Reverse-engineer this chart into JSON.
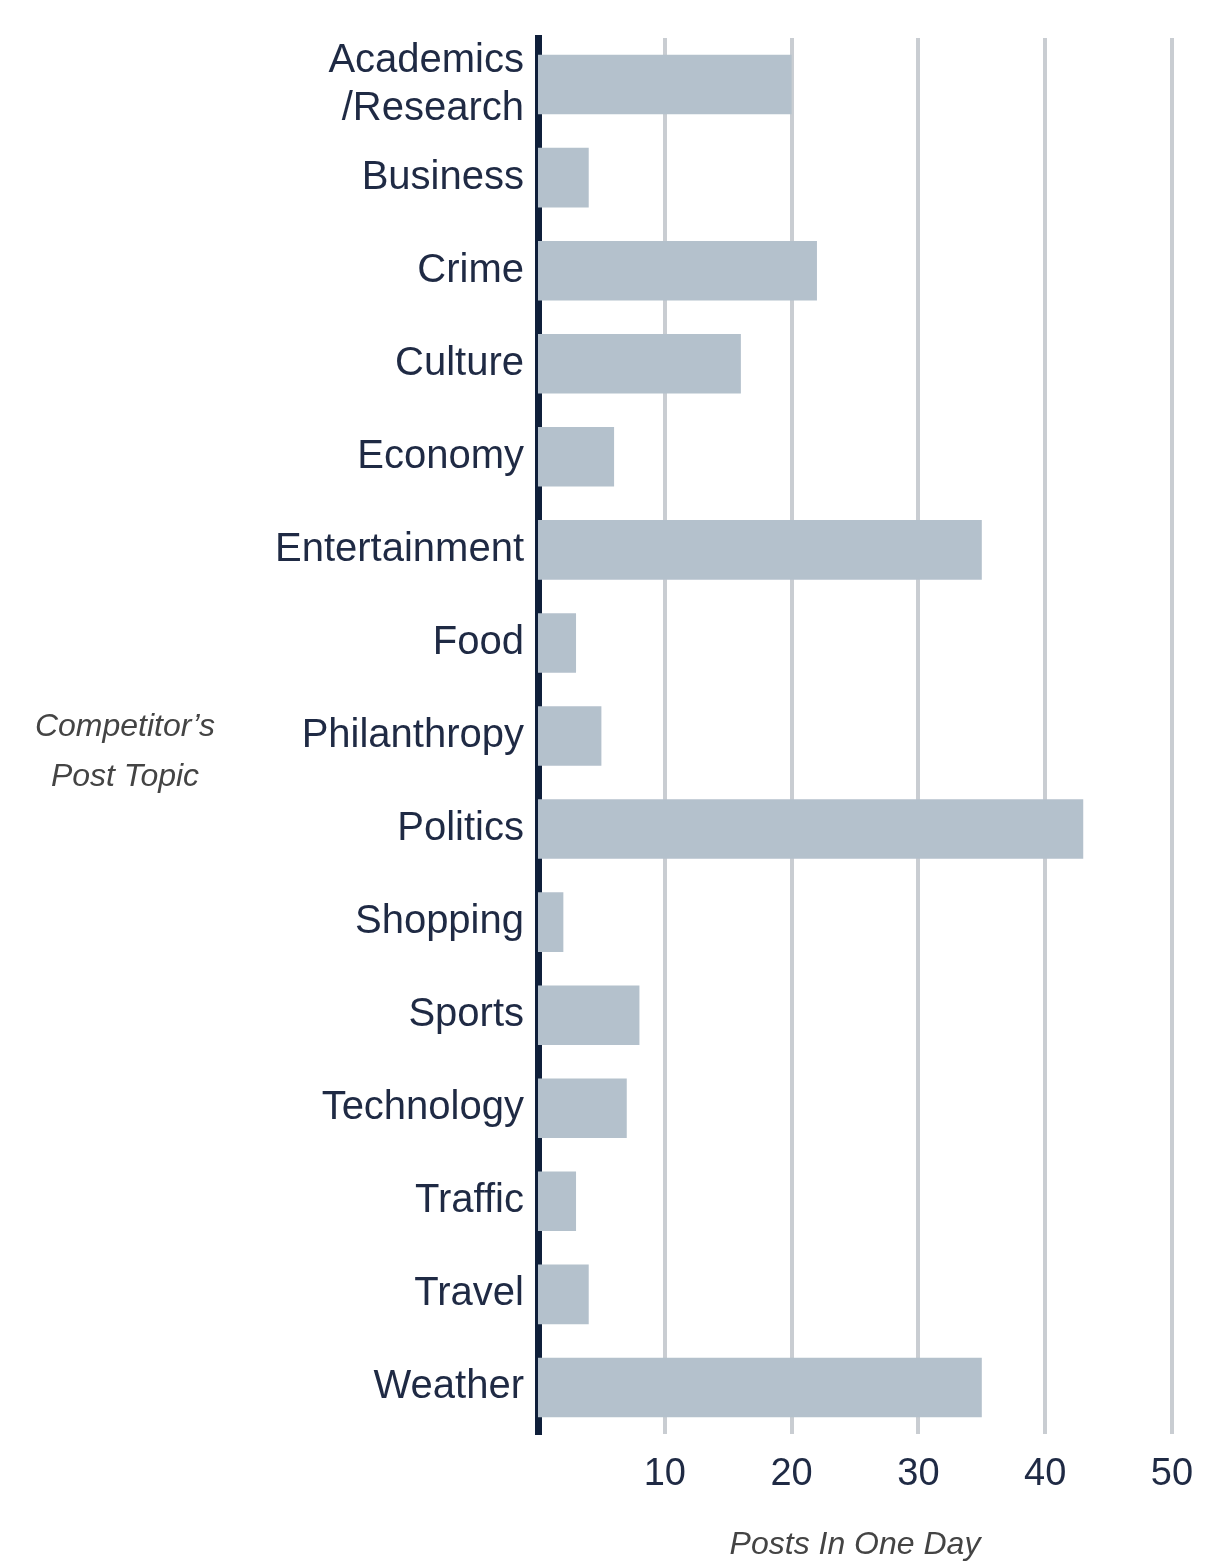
{
  "chart_data": {
    "type": "bar",
    "orientation": "horizontal",
    "xlabel": "Posts In One Day",
    "ylabel": "Competitor’s Post Topic",
    "categories": [
      "Academics\n/Research",
      "Business",
      "Crime",
      "Culture",
      "Economy",
      "Entertainment",
      "Food",
      "Philanthropy",
      "Politics",
      "Shopping",
      "Sports",
      "Technology",
      "Traffic",
      "Travel",
      "Weather"
    ],
    "values": [
      20,
      4,
      22,
      16,
      6,
      35,
      3,
      5,
      43,
      2,
      8,
      7,
      3,
      4,
      35
    ],
    "color": "#b4c1cc",
    "xlim": [
      0,
      50
    ],
    "xticks": [
      10,
      20,
      30,
      40,
      50
    ],
    "grid": "x",
    "legend": false
  }
}
